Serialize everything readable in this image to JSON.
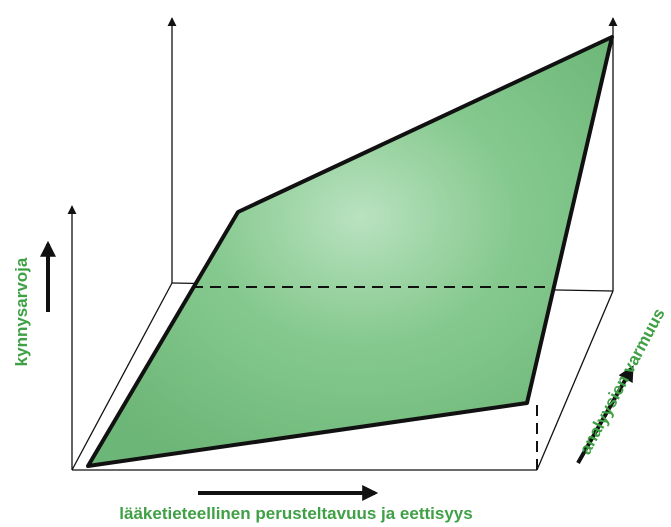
{
  "labels": {
    "vertical_axis": "kynnysarvoja",
    "depth_axis": "analyysien varmuus",
    "horizontal_axis": "lääketieteellinen perusteltavuus ja eettisyys"
  },
  "colors": {
    "label_green": "#3fa045",
    "plane_fill": "#7fc48a",
    "plane_highlight": "#b9e2bf",
    "line": "#111111"
  }
}
